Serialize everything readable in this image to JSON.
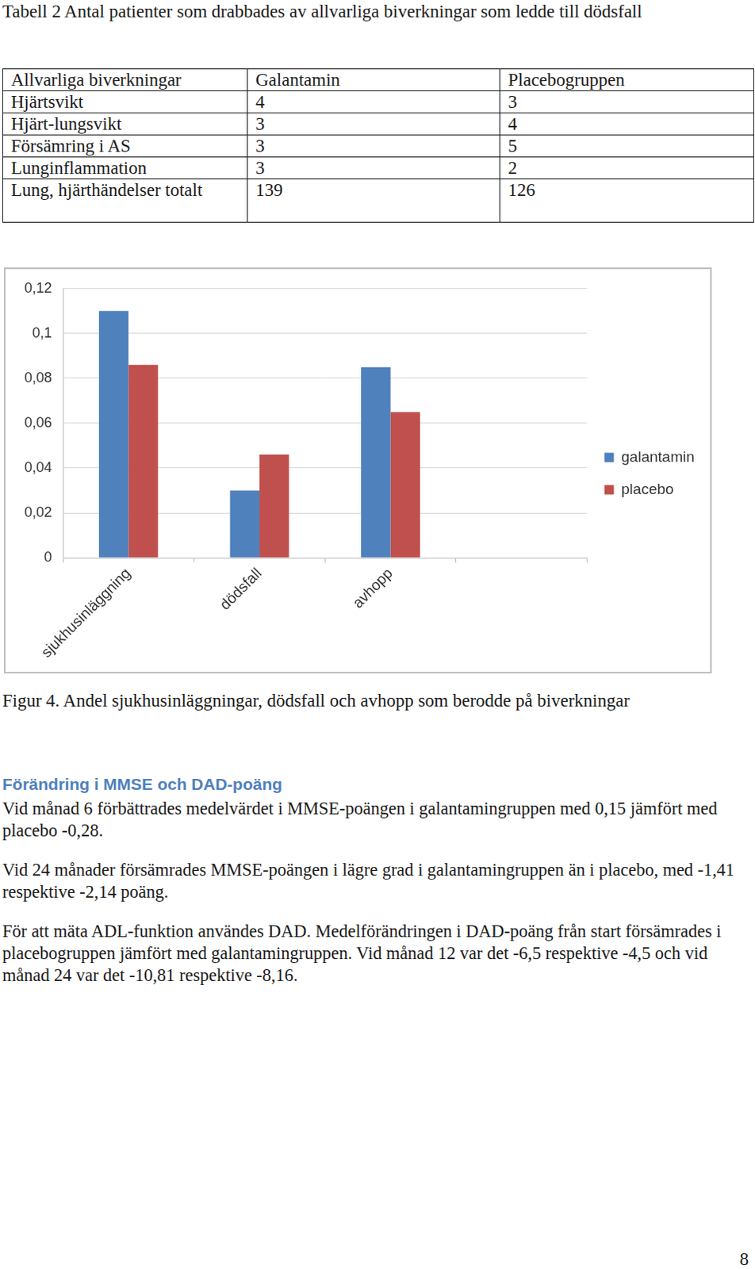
{
  "table_caption": "Tabell 2 Antal patienter som drabbades av allvarliga biverkningar som ledde till dödsfall",
  "table": {
    "header": [
      "Allvarliga biverkningar",
      "Galantamin",
      "Placebogruppen"
    ],
    "rows": [
      [
        "Hjärtsvikt",
        4,
        3
      ],
      [
        "Hjärt-lungsvikt",
        3,
        4
      ],
      [
        "Försämring i AS",
        3,
        5
      ],
      [
        "Lunginflammation",
        3,
        2
      ],
      [
        "Lung, hjärthändelser totalt",
        139,
        126
      ]
    ]
  },
  "chart_data": {
    "type": "bar",
    "categories": [
      "sjukhusinläggning",
      "dödsfall",
      "avhopp",
      null
    ],
    "series": [
      {
        "name": "galantamin",
        "color": "#4f81bd",
        "values": [
          0.11,
          0.03,
          0.085,
          null
        ]
      },
      {
        "name": "placebo",
        "color": "#c0504d",
        "values": [
          0.086,
          0.046,
          0.065,
          null
        ]
      }
    ],
    "ylim": [
      0,
      0.12
    ],
    "yticks": [
      0,
      {
        "value": 0.02,
        "label": "0,02"
      },
      {
        "value": 0.04,
        "label": "0,04"
      },
      {
        "value": 0.06,
        "label": "0,06"
      },
      {
        "value": 0.08,
        "label": "0,08"
      },
      {
        "value": 0.1,
        "label": "0,1"
      },
      {
        "value": 0.12,
        "label": "0,12"
      }
    ],
    "grid": true,
    "legend": "right"
  },
  "figure_caption": "Figur 4. Andel sjukhusinläggningar, dödsfall och avhopp som berodde på biverkningar",
  "section": {
    "heading": "Förändring i MMSE och DAD-poäng",
    "paragraphs": [
      "Vid månad 6 förbättrades medelvärdet i MMSE-poängen i galantamingruppen med 0,15 jämfört med placebo -0,28.",
      "Vid 24 månader försämrades MMSE-poängen i lägre grad i galantamingruppen än i placebo, med -1,41 respektive -2,14 poäng.",
      "För att mäta ADL-funktion användes DAD. Medelförändringen i DAD-poäng från start försämrades i placebogruppen jämfört med galantamingruppen. Vid månad 12 var det -6,5 respektive -4,5 och vid månad 24 var det -10,81 respektive -8,16."
    ]
  },
  "page_number": "8"
}
